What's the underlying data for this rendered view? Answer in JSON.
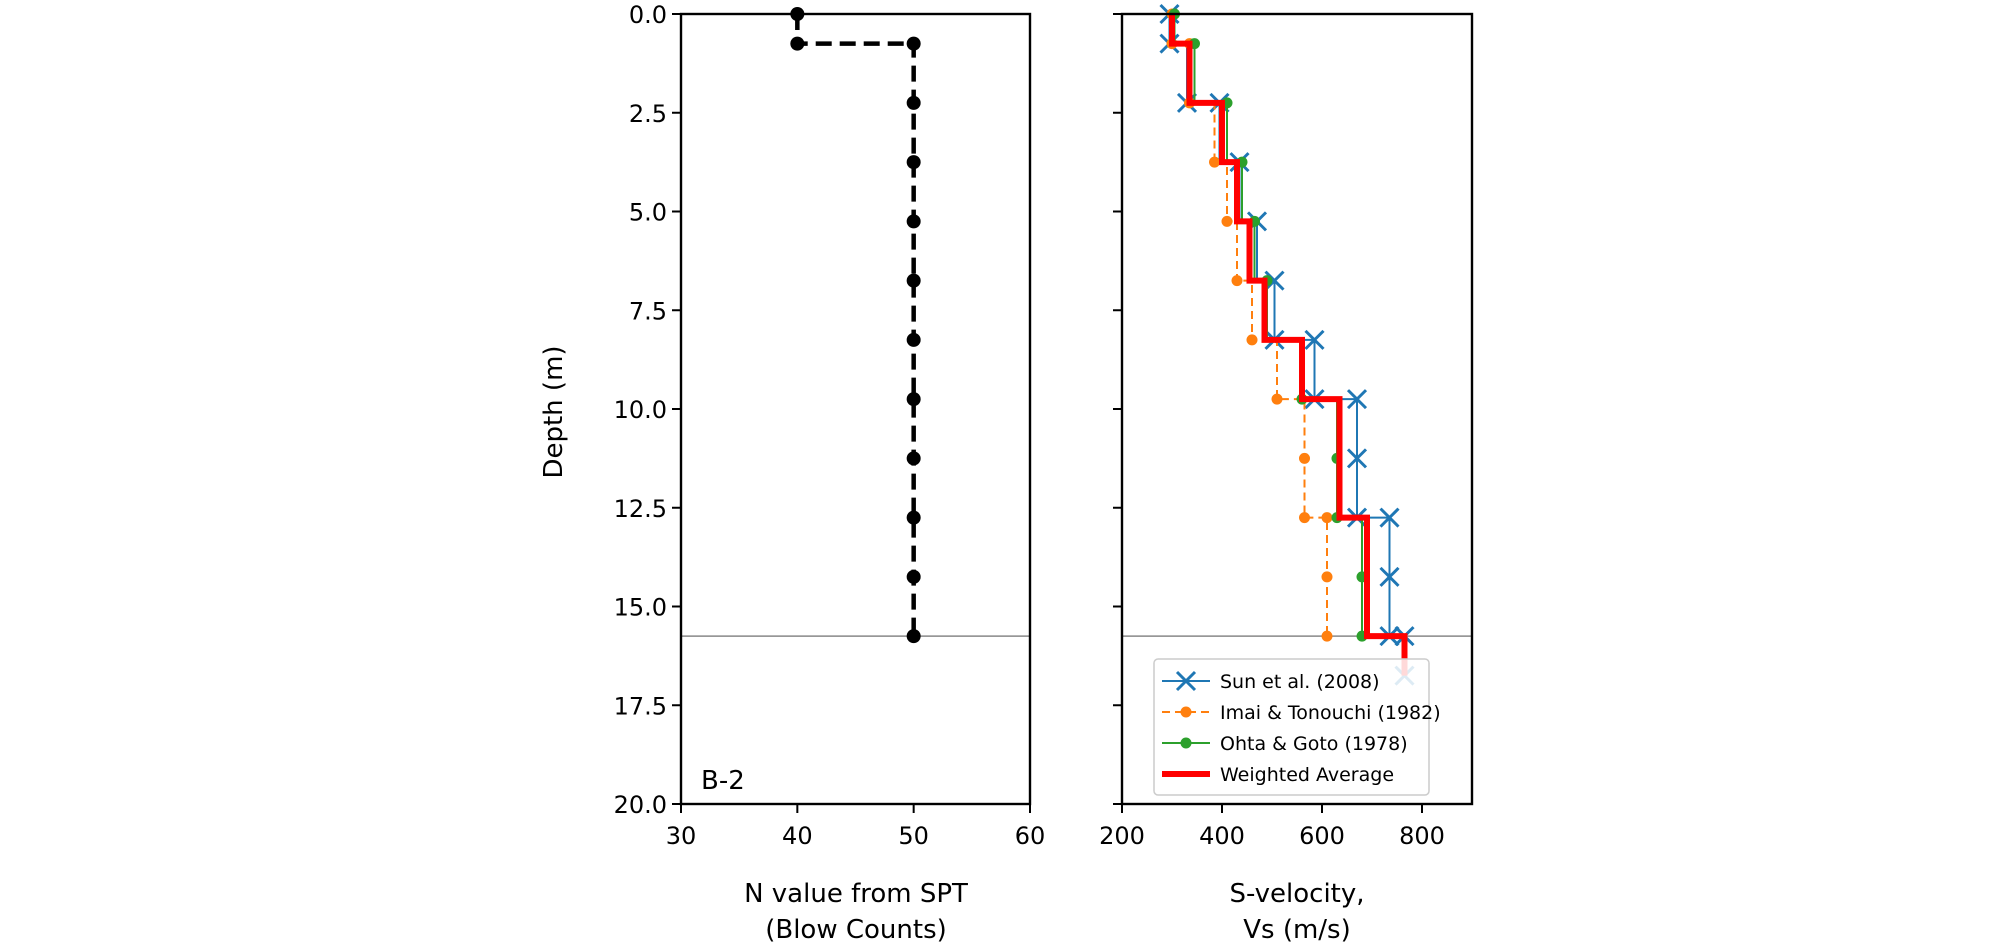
{
  "figure": {
    "y_axis_label": "Depth (m)",
    "panel_label": "B-2"
  },
  "chart_data": [
    {
      "type": "line",
      "title": "",
      "xlabel": [
        "N value from SPT",
        "(Blow Counts)"
      ],
      "ylabel": "Depth (m)",
      "xlim": [
        30,
        60
      ],
      "ylim": [
        20.0,
        0.0
      ],
      "y_inverted": true,
      "x_ticks": [
        "30",
        "40",
        "50",
        "60"
      ],
      "y_ticks": [
        "0.0",
        "2.5",
        "5.0",
        "7.5",
        "10.0",
        "12.5",
        "15.0",
        "17.5",
        "20.0"
      ],
      "grid": false,
      "reference_line_depth": 15.75,
      "annotation": "B-2",
      "series": [
        {
          "color": "#000000",
          "style": "dashed-step-markers",
          "x": [
            40,
            40,
            50,
            50,
            50,
            50,
            50,
            50,
            50,
            50,
            50,
            50
          ],
          "y": [
            0.0,
            0.75,
            0.75,
            2.25,
            3.75,
            5.25,
            6.75,
            8.25,
            9.75,
            11.25,
            12.75,
            15.75
          ],
          "markers": [
            [
              40,
              0.0
            ],
            [
              40,
              0.75
            ],
            [
              50,
              0.75
            ],
            [
              50,
              2.25
            ],
            [
              50,
              3.75
            ],
            [
              50,
              5.25
            ],
            [
              50,
              6.75
            ],
            [
              50,
              8.25
            ],
            [
              50,
              9.75
            ],
            [
              50,
              11.25
            ],
            [
              50,
              12.75
            ],
            [
              50,
              14.25
            ],
            [
              50,
              15.75
            ]
          ]
        }
      ]
    },
    {
      "type": "line",
      "title": "",
      "xlabel": [
        "S-velocity,",
        "Vs (m/s)"
      ],
      "ylabel": "",
      "xlim": [
        200,
        900
      ],
      "ylim": [
        20.0,
        0.0
      ],
      "y_inverted": true,
      "x_ticks": [
        "200",
        "400",
        "600",
        "800"
      ],
      "grid": false,
      "reference_line_depth": 15.75,
      "legend_position": "lower-right",
      "series": [
        {
          "name": "Sun et al. (2008)",
          "color": "#1f77b4",
          "style": "solid-step-x",
          "points": [
            [
              295,
              0.0
            ],
            [
              295,
              0.75
            ],
            [
              330,
              0.75
            ],
            [
              330,
              2.25
            ],
            [
              395,
              2.25
            ],
            [
              395,
              3.75
            ],
            [
              435,
              3.75
            ],
            [
              435,
              5.25
            ],
            [
              470,
              5.25
            ],
            [
              470,
              6.75
            ],
            [
              505,
              6.75
            ],
            [
              505,
              8.25
            ],
            [
              585,
              8.25
            ],
            [
              585,
              9.75
            ],
            [
              670,
              9.75
            ],
            [
              670,
              11.25
            ],
            [
              670,
              12.75
            ],
            [
              735,
              12.75
            ],
            [
              735,
              14.25
            ],
            [
              735,
              15.75
            ],
            [
              765,
              15.75
            ],
            [
              765,
              16.75
            ]
          ],
          "markers": [
            [
              295,
              0.0
            ],
            [
              295,
              0.75
            ],
            [
              330,
              2.25
            ],
            [
              395,
              2.25
            ],
            [
              435,
              3.75
            ],
            [
              470,
              5.25
            ],
            [
              505,
              6.75
            ],
            [
              505,
              8.25
            ],
            [
              585,
              8.25
            ],
            [
              585,
              9.75
            ],
            [
              670,
              9.75
            ],
            [
              670,
              11.25
            ],
            [
              670,
              12.75
            ],
            [
              735,
              12.75
            ],
            [
              735,
              14.25
            ],
            [
              735,
              15.75
            ],
            [
              765,
              15.75
            ],
            [
              765,
              16.75
            ]
          ]
        },
        {
          "name": "Imai & Tonouchi (1982)",
          "color": "#ff7f0e",
          "style": "dashed-step-dots",
          "points": [
            [
              300,
              0.0
            ],
            [
              300,
              0.75
            ],
            [
              335,
              0.75
            ],
            [
              335,
              2.25
            ],
            [
              385,
              2.25
            ],
            [
              385,
              3.75
            ],
            [
              410,
              3.75
            ],
            [
              410,
              5.25
            ],
            [
              430,
              5.25
            ],
            [
              430,
              6.75
            ],
            [
              460,
              6.75
            ],
            [
              460,
              8.25
            ],
            [
              510,
              8.25
            ],
            [
              510,
              9.75
            ],
            [
              565,
              9.75
            ],
            [
              565,
              11.25
            ],
            [
              565,
              12.75
            ],
            [
              610,
              12.75
            ],
            [
              610,
              14.25
            ],
            [
              610,
              15.75
            ]
          ],
          "markers": [
            [
              300,
              0.0
            ],
            [
              300,
              0.75
            ],
            [
              335,
              0.75
            ],
            [
              335,
              2.25
            ],
            [
              385,
              3.75
            ],
            [
              410,
              5.25
            ],
            [
              430,
              6.75
            ],
            [
              460,
              8.25
            ],
            [
              510,
              9.75
            ],
            [
              565,
              11.25
            ],
            [
              565,
              12.75
            ],
            [
              610,
              12.75
            ],
            [
              610,
              14.25
            ],
            [
              610,
              15.75
            ]
          ]
        },
        {
          "name": "Ohta & Goto (1978)",
          "color": "#2ca02c",
          "style": "solid-step-dots",
          "points": [
            [
              305,
              0.0
            ],
            [
              305,
              0.75
            ],
            [
              345,
              0.75
            ],
            [
              345,
              2.25
            ],
            [
              410,
              2.25
            ],
            [
              410,
              3.75
            ],
            [
              440,
              3.75
            ],
            [
              440,
              5.25
            ],
            [
              465,
              5.25
            ],
            [
              465,
              6.75
            ],
            [
              490,
              6.75
            ],
            [
              490,
              8.25
            ],
            [
              560,
              8.25
            ],
            [
              560,
              9.75
            ],
            [
              630,
              9.75
            ],
            [
              630,
              11.25
            ],
            [
              630,
              12.75
            ],
            [
              680,
              12.75
            ],
            [
              680,
              14.25
            ],
            [
              680,
              15.75
            ]
          ],
          "markers": [
            [
              305,
              0.0
            ],
            [
              345,
              0.75
            ],
            [
              410,
              2.25
            ],
            [
              440,
              3.75
            ],
            [
              465,
              5.25
            ],
            [
              490,
              6.75
            ],
            [
              560,
              9.75
            ],
            [
              630,
              11.25
            ],
            [
              630,
              12.75
            ],
            [
              680,
              14.25
            ],
            [
              680,
              15.75
            ]
          ]
        },
        {
          "name": "Weighted Average",
          "color": "#ff0000",
          "style": "thick-solid-step",
          "points": [
            [
              300,
              0.0
            ],
            [
              300,
              0.75
            ],
            [
              335,
              0.75
            ],
            [
              335,
              2.25
            ],
            [
              400,
              2.25
            ],
            [
              400,
              3.75
            ],
            [
              430,
              3.75
            ],
            [
              430,
              5.25
            ],
            [
              455,
              5.25
            ],
            [
              455,
              6.75
            ],
            [
              485,
              6.75
            ],
            [
              485,
              8.25
            ],
            [
              560,
              8.25
            ],
            [
              560,
              9.75
            ],
            [
              635,
              9.75
            ],
            [
              635,
              12.75
            ],
            [
              690,
              12.75
            ],
            [
              690,
              15.75
            ],
            [
              765,
              15.75
            ],
            [
              765,
              16.75
            ]
          ]
        }
      ]
    }
  ]
}
